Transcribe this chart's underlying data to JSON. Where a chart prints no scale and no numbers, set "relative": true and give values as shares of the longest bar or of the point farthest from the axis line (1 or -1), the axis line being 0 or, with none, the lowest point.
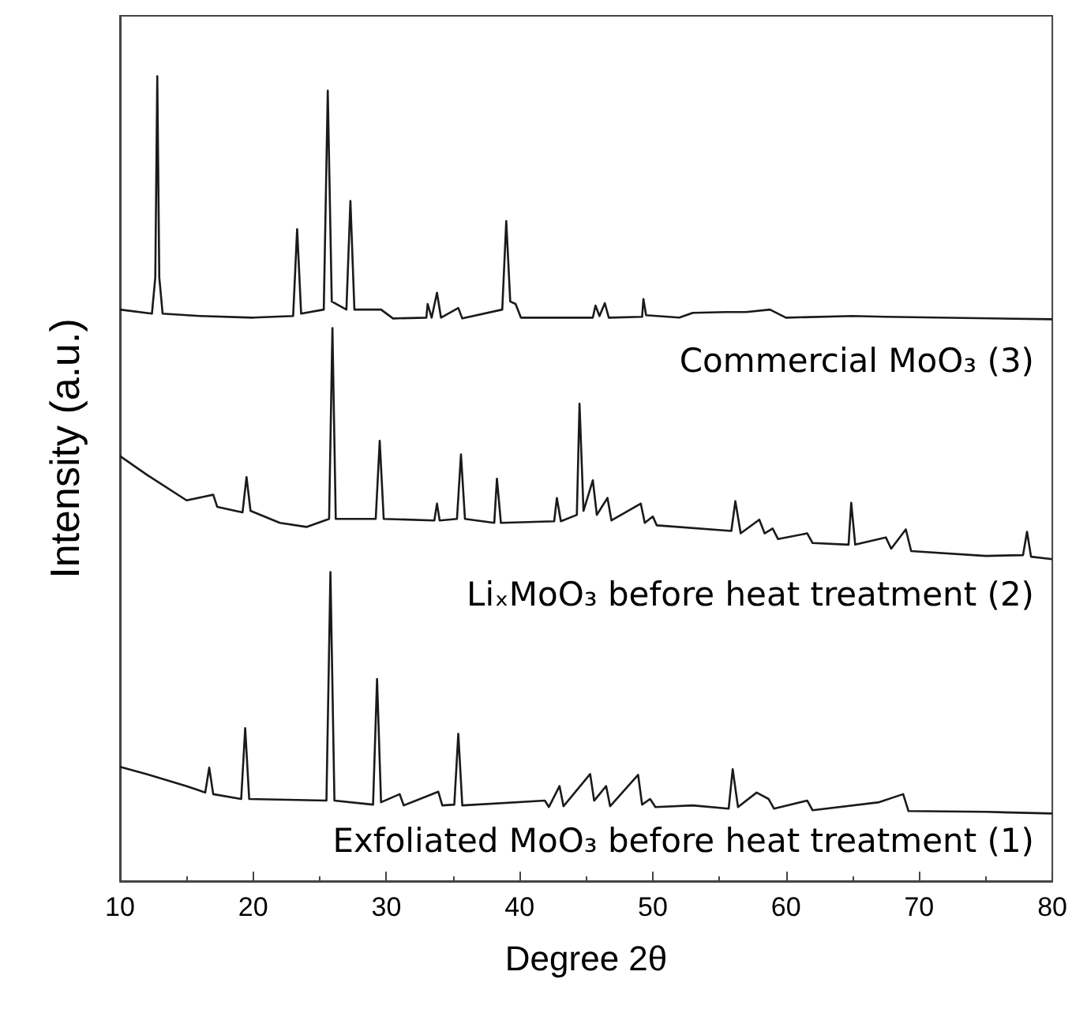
{
  "chart_data": {
    "type": "line",
    "relative": true,
    "xlabel": "Degree 2θ",
    "ylabel": "Intensity (a.u.)",
    "xlim": [
      10,
      80
    ],
    "xticks": [
      10,
      20,
      30,
      40,
      50,
      60,
      70,
      80
    ],
    "marker": "none",
    "annotations": [
      "Commercial MoO₃ (3)",
      "LiₓMoO₃ before heat treatment (2)",
      "Exfoliated MoO₃ before heat treatment (1)"
    ],
    "series": [
      {
        "color": "#1a1a1a",
        "x": [
          10,
          12.4,
          12.65,
          12.8,
          12.95,
          13.2,
          16,
          20,
          23.0,
          23.3,
          23.6,
          25.3,
          25.6,
          25.9,
          27.0,
          27.3,
          27.6,
          29.6,
          30.5,
          33.0,
          33.1,
          33.4,
          33.8,
          34.1,
          35.4,
          35.7,
          38.7,
          39.0,
          39.3,
          39.7,
          40.1,
          45.5,
          45.7,
          46.0,
          46.4,
          46.7,
          49.2,
          49.3,
          49.5,
          52,
          53,
          55.5,
          57,
          58.8,
          60,
          65,
          67.5,
          80
        ],
        "values": [
          0.71,
          0.705,
          0.75,
          1.0,
          0.75,
          0.705,
          0.702,
          0.7,
          0.702,
          0.81,
          0.705,
          0.71,
          0.982,
          0.72,
          0.71,
          0.845,
          0.71,
          0.71,
          0.699,
          0.7,
          0.717,
          0.7,
          0.731,
          0.7,
          0.712,
          0.699,
          0.71,
          0.82,
          0.72,
          0.717,
          0.7,
          0.7,
          0.715,
          0.702,
          0.718,
          0.7,
          0.701,
          0.723,
          0.703,
          0.7,
          0.706,
          0.707,
          0.707,
          0.71,
          0.7,
          0.702,
          0.701,
          0.698
        ]
      },
      {
        "color": "#1a1a1a",
        "x": [
          10,
          12,
          15,
          17,
          17.3,
          19.2,
          19.5,
          19.8,
          22,
          24,
          25.7,
          25.95,
          26.2,
          29.2,
          29.5,
          29.8,
          33.6,
          33.8,
          34.0,
          35.3,
          35.6,
          35.9,
          38.1,
          38.3,
          38.6,
          42.6,
          42.8,
          43.1,
          44.3,
          44.5,
          44.8,
          45.5,
          45.8,
          46.6,
          46.9,
          49.1,
          49.4,
          50.0,
          50.3,
          55.9,
          56.2,
          56.6,
          58.0,
          58.4,
          59,
          59.4,
          61.6,
          62,
          64.7,
          64.9,
          65.2,
          67.5,
          67.9,
          69.0,
          69.4,
          75,
          77.8,
          78.1,
          78.4,
          80
        ],
        "values": [
          0.528,
          0.505,
          0.473,
          0.48,
          0.465,
          0.458,
          0.502,
          0.46,
          0.445,
          0.44,
          0.45,
          0.687,
          0.45,
          0.45,
          0.547,
          0.45,
          0.448,
          0.469,
          0.448,
          0.45,
          0.53,
          0.45,
          0.445,
          0.5,
          0.445,
          0.447,
          0.476,
          0.447,
          0.455,
          0.593,
          0.46,
          0.498,
          0.455,
          0.476,
          0.448,
          0.469,
          0.445,
          0.453,
          0.442,
          0.435,
          0.472,
          0.432,
          0.449,
          0.432,
          0.438,
          0.425,
          0.432,
          0.42,
          0.418,
          0.47,
          0.418,
          0.427,
          0.413,
          0.437,
          0.41,
          0.404,
          0.405,
          0.434,
          0.403,
          0.4
        ]
      },
      {
        "color": "#1a1a1a",
        "x": [
          10,
          12,
          15,
          16.4,
          16.7,
          17.0,
          19.1,
          19.4,
          19.7,
          25.5,
          25.8,
          26.1,
          29.0,
          29.3,
          29.6,
          31,
          31.3,
          33.9,
          34.2,
          35.1,
          35.4,
          35.7,
          41.9,
          42.2,
          43.0,
          43.3,
          45.3,
          45.6,
          46.5,
          46.8,
          48.9,
          49.2,
          49.8,
          50.2,
          53,
          55.7,
          56.0,
          56.4,
          57.8,
          58.7,
          59.1,
          61.6,
          62,
          67,
          68.8,
          69.2,
          75,
          80
        ],
        "values": [
          0.142,
          0.133,
          0.118,
          0.11,
          0.141,
          0.108,
          0.102,
          0.19,
          0.102,
          0.1,
          0.384,
          0.1,
          0.095,
          0.251,
          0.098,
          0.108,
          0.094,
          0.111,
          0.094,
          0.095,
          0.183,
          0.094,
          0.1,
          0.092,
          0.118,
          0.093,
          0.133,
          0.1,
          0.118,
          0.093,
          0.132,
          0.095,
          0.102,
          0.092,
          0.094,
          0.09,
          0.139,
          0.092,
          0.11,
          0.102,
          0.09,
          0.1,
          0.088,
          0.098,
          0.108,
          0.087,
          0.086,
          0.084
        ]
      }
    ]
  }
}
